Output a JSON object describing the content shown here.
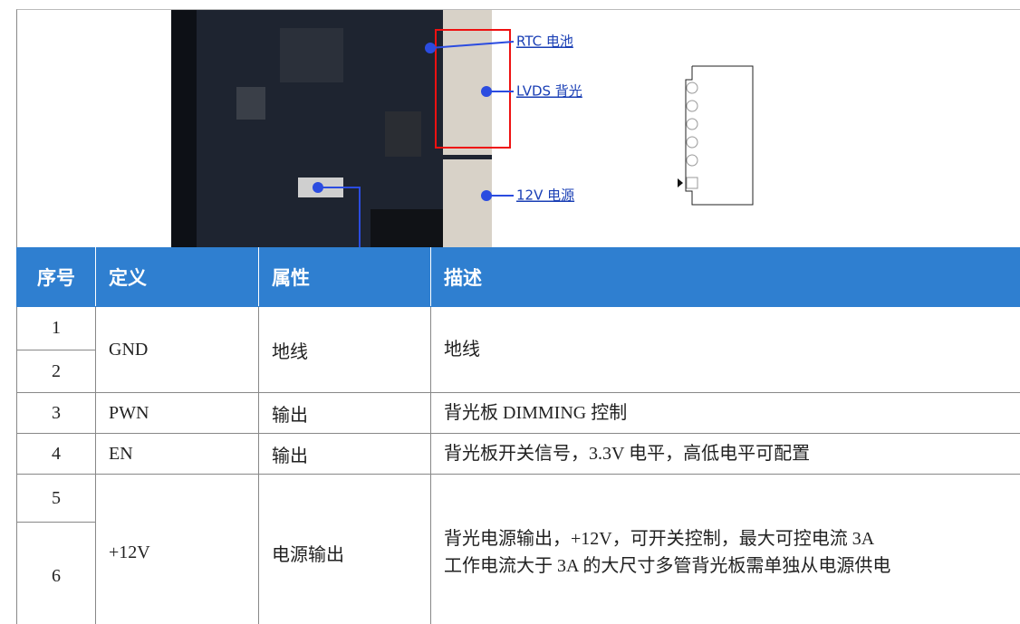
{
  "image": {
    "labels": [
      "RTC 电池",
      "LVDS 背光",
      "12V 电源"
    ]
  },
  "table": {
    "header": [
      "序号",
      "定义",
      "属性",
      "描述"
    ],
    "rows": [
      {
        "no": [
          "1",
          "2"
        ],
        "definition": "GND",
        "attribute": "地线",
        "description": [
          "地线"
        ]
      },
      {
        "no": [
          "3"
        ],
        "definition": "PWN",
        "attribute": "输出",
        "description": [
          "背光板 DIMMING 控制"
        ]
      },
      {
        "no": [
          "4"
        ],
        "definition": "EN",
        "attribute": "输出",
        "description": [
          "背光板开关信号，3.3V 电平，高低电平可配置"
        ]
      },
      {
        "no": [
          "5",
          "6"
        ],
        "definition": "+12V",
        "attribute": "电源输出",
        "description": [
          "背光电源输出，+12V，可开关控制，最大可控电流 3A",
          "工作电流大于 3A 的大尺寸多管背光板需单独从电源供电"
        ]
      }
    ]
  }
}
